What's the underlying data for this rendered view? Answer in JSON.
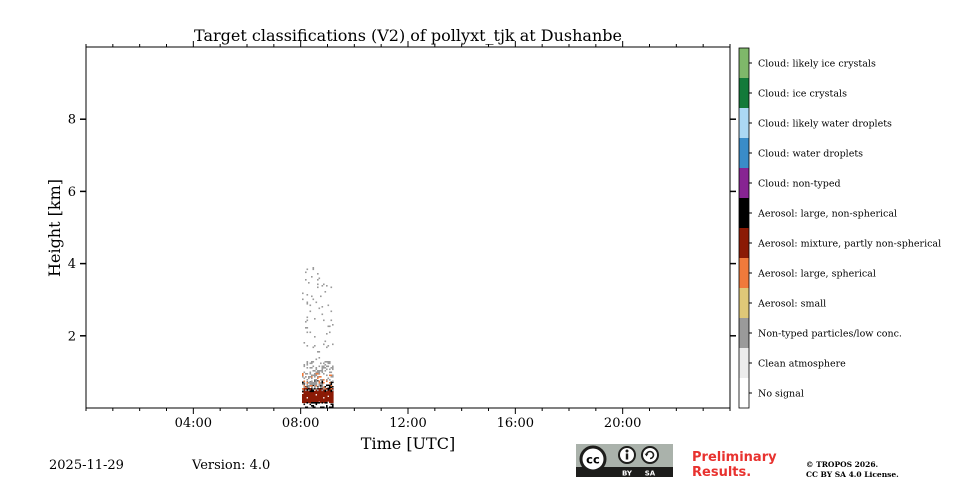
{
  "chart_data": {
    "type": "heatmap",
    "title": "Target classifications (V2) of pollyxt_tjk at Dushanbe",
    "xlabel": "Time [UTC]",
    "ylabel": "Height [km]",
    "xlim": [
      0,
      24
    ],
    "ylim": [
      0,
      10
    ],
    "xticks": [
      {
        "value": 4,
        "label": "04:00"
      },
      {
        "value": 8,
        "label": "08:00"
      },
      {
        "value": 12,
        "label": "12:00"
      },
      {
        "value": 16,
        "label": "16:00"
      },
      {
        "value": 20,
        "label": "20:00"
      }
    ],
    "yticks": [
      {
        "value": 2,
        "label": "2"
      },
      {
        "value": 4,
        "label": "4"
      },
      {
        "value": 6,
        "label": "6"
      },
      {
        "value": 8,
        "label": "8"
      }
    ],
    "data_window": {
      "t_start": 8.07,
      "t_end": 9.2
    },
    "layers": [
      {
        "class": "Aerosol: mixture, partly non-spherical",
        "h_min": 0.15,
        "h_max": 0.55,
        "density": 0.95
      },
      {
        "class": "Aerosol: large, non-spherical",
        "h_min": 0.45,
        "h_max": 0.75,
        "density": 0.35
      },
      {
        "class": "Aerosol: large, spherical",
        "h_min": 0.55,
        "h_max": 0.95,
        "density": 0.18
      },
      {
        "class": "Non-typed particles/low conc.",
        "h_min": 0.5,
        "h_max": 1.3,
        "density": 0.3
      },
      {
        "class": "Non-typed particles/low conc.",
        "h_min": 1.3,
        "h_max": 3.9,
        "density": 0.04
      },
      {
        "class": "Aerosol: large, non-spherical",
        "h_min": 0.0,
        "h_max": 0.15,
        "density": 0.4
      }
    ],
    "legend": [
      {
        "label": "Cloud: likely ice crystals",
        "color": "#7fb86a"
      },
      {
        "label": "Cloud: ice crystals",
        "color": "#137a3a"
      },
      {
        "label": "Cloud: likely water droplets",
        "color": "#acd8f4"
      },
      {
        "label": "Cloud: water droplets",
        "color": "#3a8cc8"
      },
      {
        "label": "Cloud: non-typed",
        "color": "#872492"
      },
      {
        "label": "Aerosol: large, non-spherical",
        "color": "#000000"
      },
      {
        "label": "Aerosol: mixture, partly non-spherical",
        "color": "#8b1a05"
      },
      {
        "label": "Aerosol: large, spherical",
        "color": "#f07a3b"
      },
      {
        "label": "Aerosol: small",
        "color": "#dfc878"
      },
      {
        "label": "Non-typed particles/low conc.",
        "color": "#9a9a9a"
      },
      {
        "label": "Clean atmosphere",
        "color": "#ececec"
      },
      {
        "label": "No signal",
        "color": "#ffffff"
      }
    ]
  },
  "footer": {
    "date": "2025-11-29",
    "version": "Version: 4.0",
    "preliminary": "Preliminary",
    "results": "Results.",
    "copyright1": "© TROPOS 2026.",
    "copyright2": "CC BY SA 4.0 License."
  },
  "license_badge": {
    "cc": "cc",
    "by": "BY",
    "sa": "SA"
  }
}
